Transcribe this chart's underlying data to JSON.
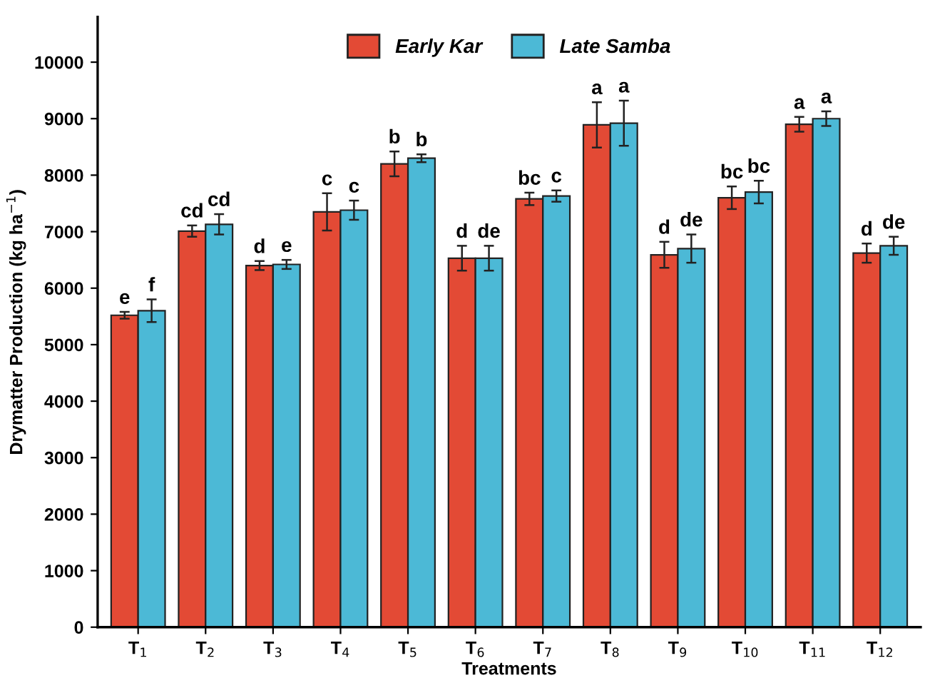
{
  "chart_data": {
    "type": "bar",
    "xlabel": "Treatments",
    "ylabel": "Drymatter Production (kg ha$^{−1}$)",
    "categories": [
      "T$_{1}$",
      "T$_{2}$",
      "T$_{3}$",
      "T$_{4}$",
      "T$_{5}$",
      "T$_{6}$",
      "T$_{7}$",
      "T$_{8}$",
      "T$_{9}$",
      "T$_{10}$",
      "T$_{11}$",
      "T$_{12}$"
    ],
    "series": [
      {
        "name": "Early Kar",
        "color": "#e34a35",
        "values": [
          5520,
          7010,
          6400,
          7350,
          8200,
          6530,
          7580,
          8890,
          6590,
          7600,
          8900,
          6620
        ],
        "errors": [
          60,
          100,
          80,
          330,
          220,
          220,
          110,
          400,
          230,
          200,
          130,
          170
        ],
        "value_labels": [
          "e",
          "cd",
          "d",
          "c",
          "b",
          "d",
          "bc",
          "a",
          "d",
          "bc",
          "a",
          "d"
        ]
      },
      {
        "name": "Late Samba",
        "color": "#4cb9d6",
        "values": [
          5600,
          7130,
          6420,
          7380,
          8300,
          6530,
          7630,
          8920,
          6700,
          7700,
          9000,
          6750
        ],
        "errors": [
          200,
          180,
          80,
          170,
          70,
          220,
          100,
          400,
          250,
          200,
          130,
          160
        ],
        "value_labels": [
          "f",
          "cd",
          "e",
          "c",
          "b",
          "de",
          "c",
          "a",
          "de",
          "bc",
          "a",
          "de"
        ]
      }
    ],
    "ylim": [
      0,
      10800
    ],
    "yticks": [
      0,
      1000,
      2000,
      3000,
      4000,
      5000,
      6000,
      7000,
      8000,
      9000,
      10000
    ],
    "grid": false,
    "legend": "top"
  }
}
